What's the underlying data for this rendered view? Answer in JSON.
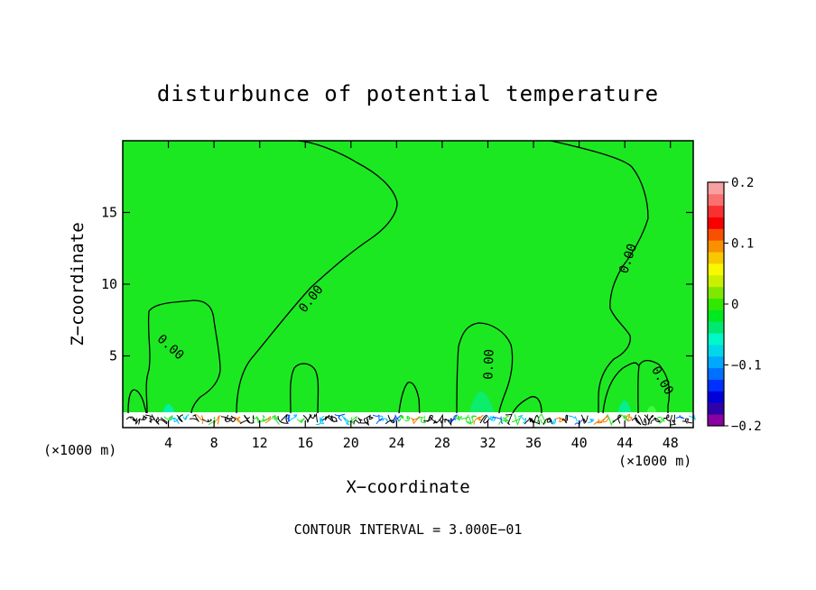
{
  "chart_data": {
    "type": "contour",
    "title": "disturbunce of potential temperature",
    "xlabel": "X−coordinate",
    "ylabel": "Z−coordinate",
    "x_unit_left": "(×1000 m)",
    "x_unit_right": "(×1000 m)",
    "xlim": [
      0,
      50
    ],
    "ylim": [
      0,
      20
    ],
    "xticks": [
      4,
      8,
      12,
      16,
      20,
      24,
      28,
      32,
      36,
      40,
      44,
      48
    ],
    "yticks": [
      5,
      10,
      15
    ],
    "contour_interval_text": "CONTOUR INTERVAL = 3.000E−01",
    "contour_label": "0.00",
    "background_value": 0,
    "colorbar": {
      "range": [
        -0.2,
        0.2
      ],
      "tick_values": [
        -0.2,
        -0.1,
        0,
        0.1,
        0.2
      ],
      "tick_labels": [
        "−0.2",
        "−0.1",
        "0",
        "0.1",
        "0.2"
      ],
      "colors": [
        "#8a00a0",
        "#3000a8",
        "#0000d8",
        "#0030ff",
        "#0070ff",
        "#00a8ff",
        "#00d8e8",
        "#00f8c8",
        "#00e870",
        "#00e820",
        "#30e800",
        "#80e800",
        "#c8f000",
        "#f8f800",
        "#f8c800",
        "#f89000",
        "#f85000",
        "#f80000",
        "#f83030",
        "#f87070",
        "#f8a0a0"
      ]
    },
    "field_color": "#20e820"
  }
}
